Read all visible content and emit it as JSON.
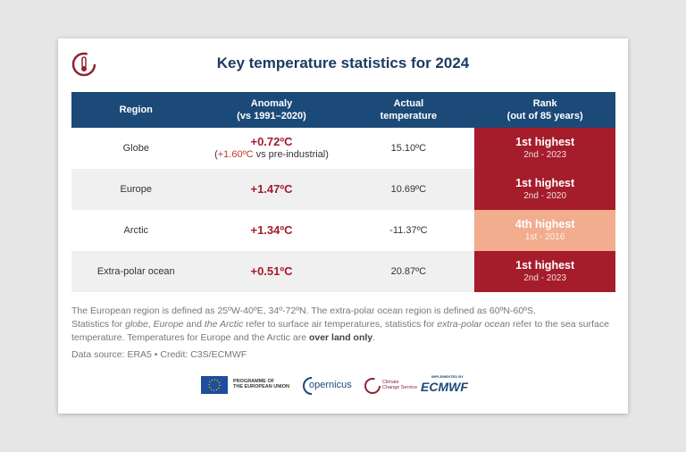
{
  "title": "Key temperature statistics for 2024",
  "table": {
    "headers": [
      [
        "Region"
      ],
      [
        "Anomaly",
        "(vs 1991–2020)"
      ],
      [
        "Actual",
        "temperature"
      ],
      [
        "Rank",
        "(out of 85 years)"
      ]
    ],
    "rows": [
      {
        "region": "Globe",
        "anomaly": "+0.72ºC",
        "anomaly_note": [
          "(",
          "+1.60ºC",
          " vs pre-industrial)"
        ],
        "actual": "15.10ºC",
        "rank": "1st highest",
        "previous": "2nd - 2023",
        "rank_color": "#a51c2b"
      },
      {
        "region": "Europe",
        "anomaly": "+1.47ºC",
        "actual": "10.69ºC",
        "rank": "1st highest",
        "previous": "2nd - 2020",
        "rank_color": "#a51c2b"
      },
      {
        "region": "Arctic",
        "anomaly": "+1.34ºC",
        "actual": "-11.37ºC",
        "rank": "4th highest",
        "previous": "1st - 2016",
        "rank_color": "#f2ad8e"
      },
      {
        "region": "Extra-polar ocean",
        "anomaly": "+0.51ºC",
        "actual": "20.87ºC",
        "rank": "1st highest",
        "previous": "2nd - 2023",
        "rank_color": "#a51c2b"
      }
    ]
  },
  "notes": [
    [
      {
        "text": "The European region is defined as 25ºW-40ºE, 34º-72ºN. The extra-polar ocean region is defined as 60ºN-60ºS.",
        "style": "normal"
      }
    ],
    [
      {
        "text": "Statistics for ",
        "style": "normal"
      },
      {
        "text": "globe",
        "style": "italic"
      },
      {
        "text": ", ",
        "style": "normal"
      },
      {
        "text": "Europe",
        "style": "italic"
      },
      {
        "text": " and ",
        "style": "normal"
      },
      {
        "text": "the Arctic",
        "style": "italic"
      },
      {
        "text": " refer to surface air temperatures, statistics for ",
        "style": "normal"
      },
      {
        "text": "extra-polar ocean",
        "style": "italic"
      },
      {
        "text": " refer to the sea surface temperature. Temperatures for Europe and the Arctic are ",
        "style": "normal"
      },
      {
        "text": "over land only",
        "style": "bold"
      },
      {
        "text": ".",
        "style": "normal"
      }
    ]
  ],
  "source": "Data source: ERA5 • Credit: C3S/ECMWF",
  "logos": {
    "eu": [
      "PROGRAMME OF",
      "THE EUROPEAN UNION"
    ],
    "copernicus": "opernicus",
    "c3s": [
      "Climate",
      "Change Service"
    ],
    "implemented": "IMPLEMENTED BY",
    "ecmwf": "ECMWF"
  }
}
